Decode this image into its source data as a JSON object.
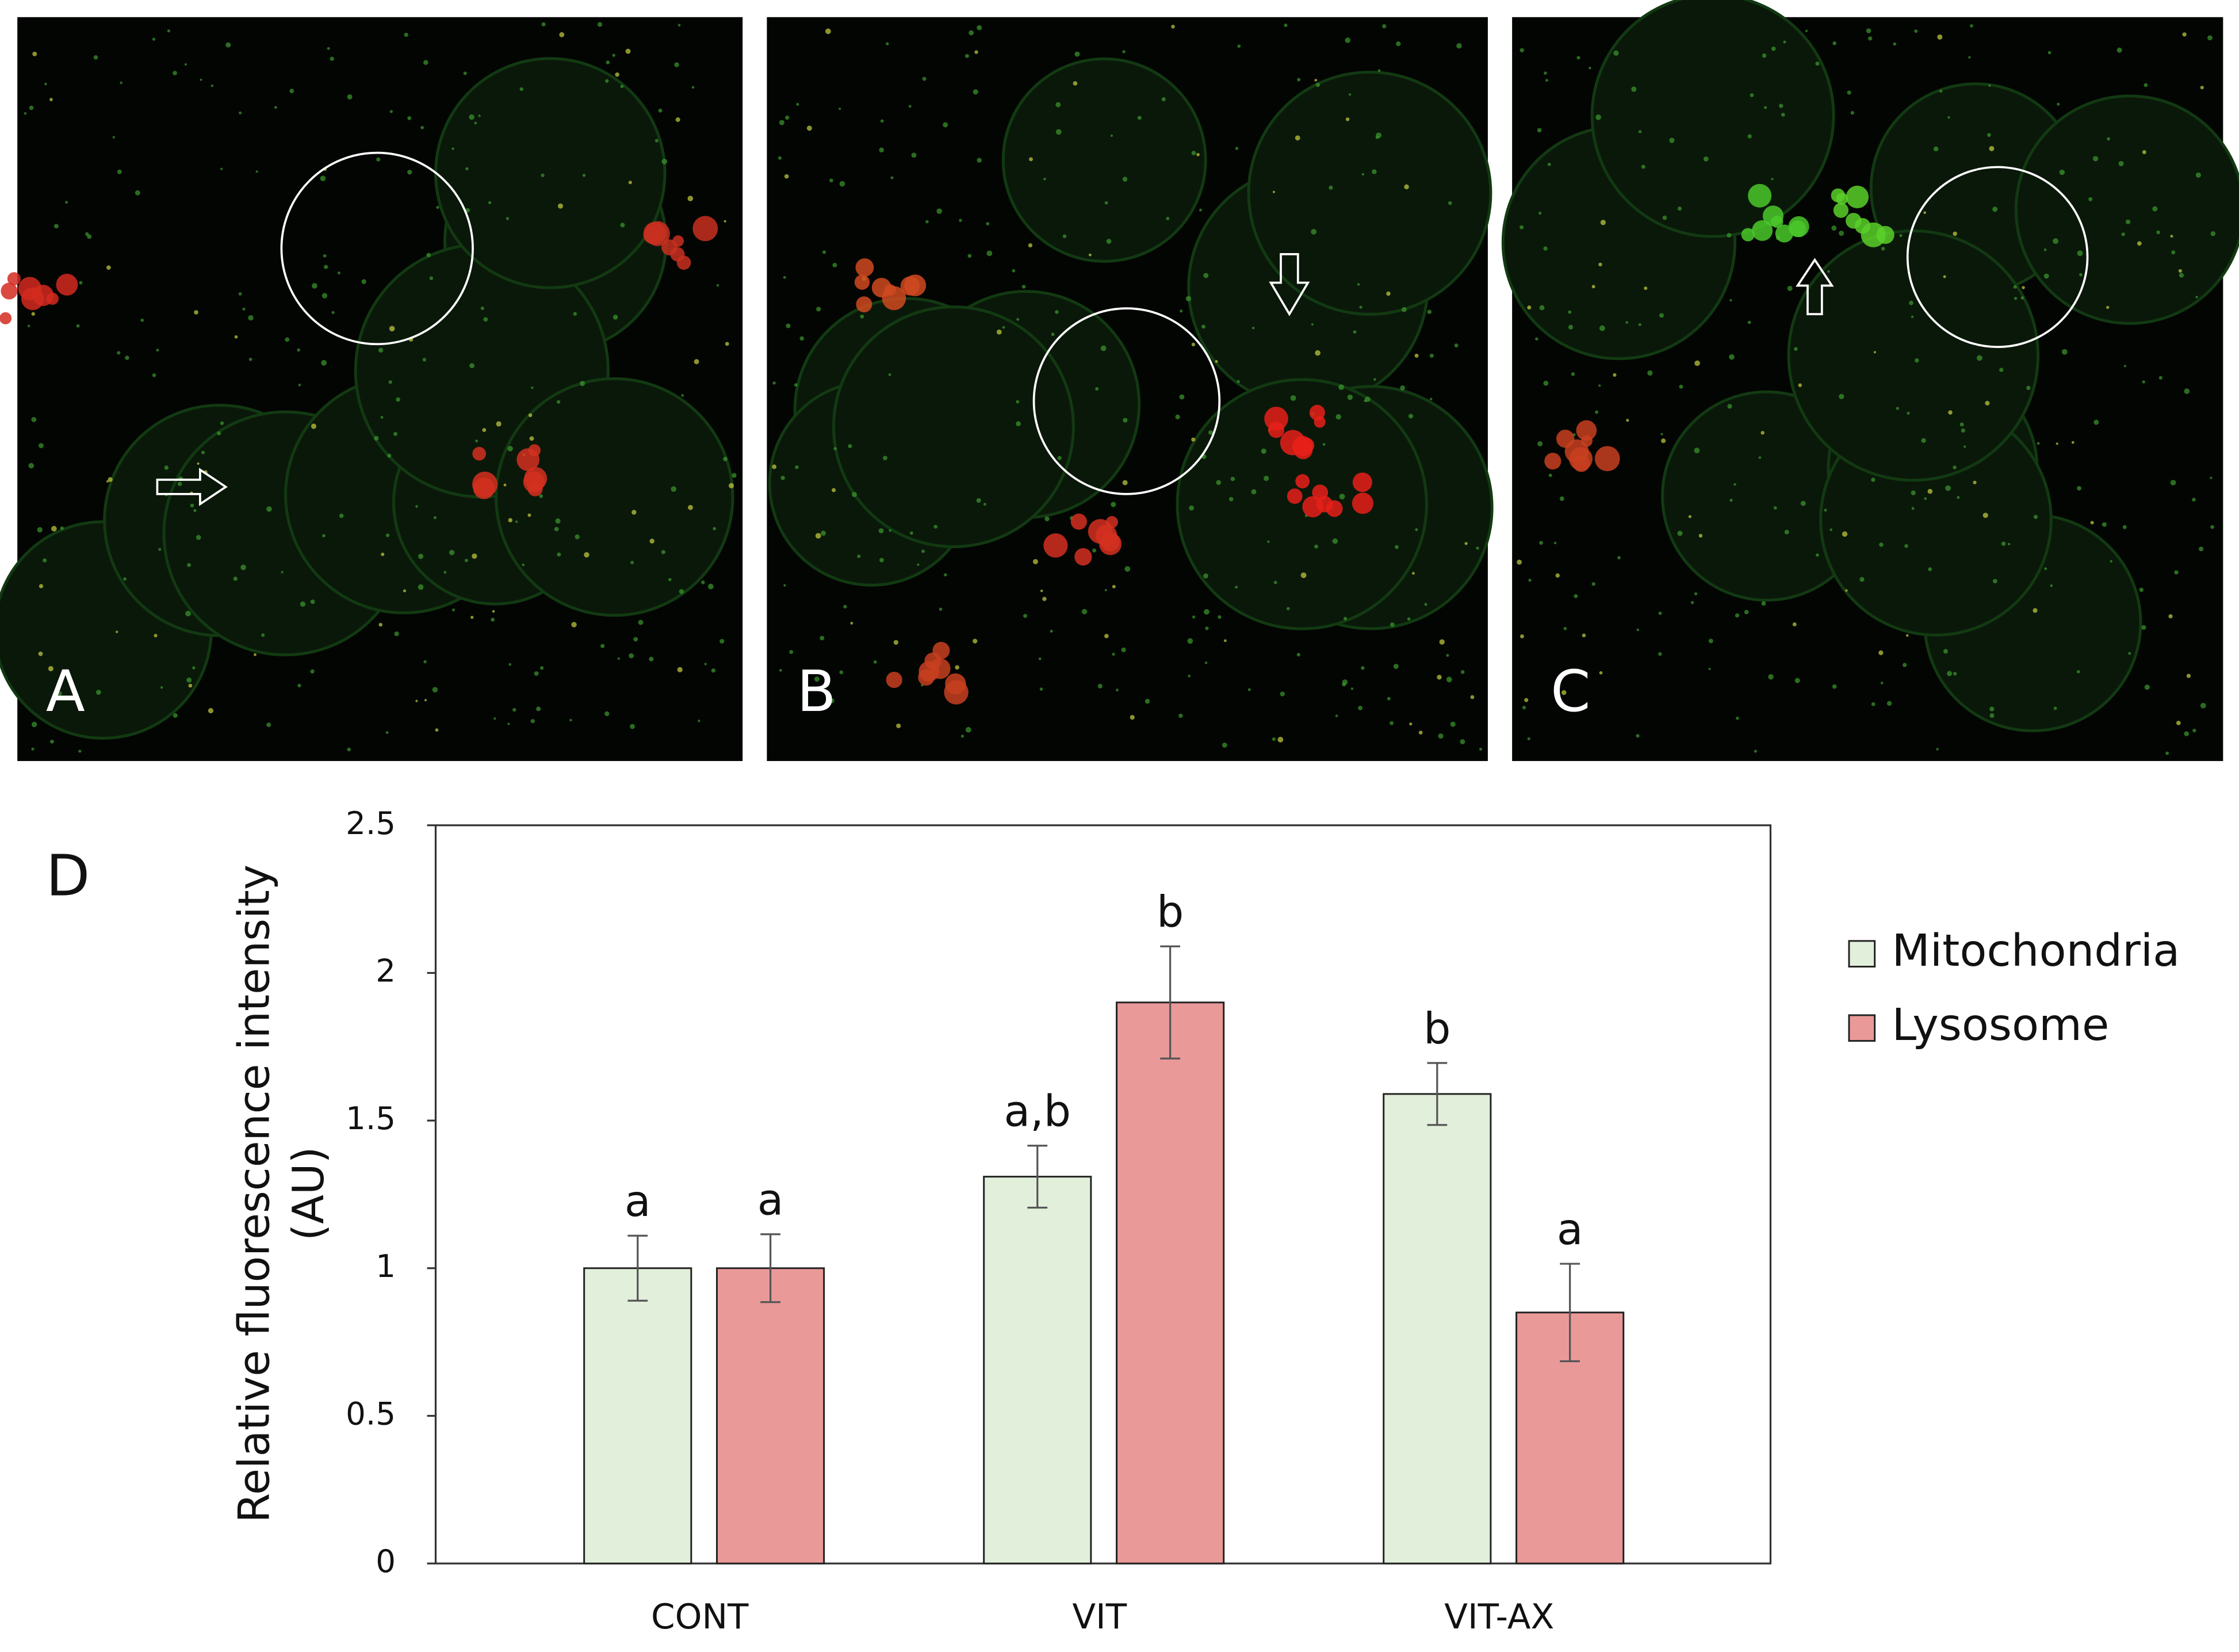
{
  "panels": [
    {
      "label": "A"
    },
    {
      "label": "B"
    },
    {
      "label": "C"
    }
  ],
  "chart_data": {
    "type": "bar",
    "panel_label": "D",
    "ylabel": [
      "Relative fluorescence intensity",
      "(AU)"
    ],
    "categories": [
      "CONT",
      "VIT",
      "VIT-AX"
    ],
    "series": [
      {
        "name": "Mitochondria",
        "color": "#e2efda",
        "values": [
          1,
          1.31,
          1.59
        ],
        "errors": [
          0.11,
          0.105,
          0.105
        ],
        "letters": [
          "a",
          "a,b",
          "b"
        ]
      },
      {
        "name": "Lysosome",
        "color": "#ea9999",
        "values": [
          1,
          1.9,
          0.85
        ],
        "errors": [
          0.115,
          0.19,
          0.165
        ],
        "letters": [
          "a",
          "b",
          "a"
        ]
      }
    ],
    "ylim": [
      0,
      2.5
    ],
    "yticks": [
      0,
      0.5,
      1,
      1.5,
      2,
      2.5
    ],
    "grid": false,
    "legend": "right"
  }
}
